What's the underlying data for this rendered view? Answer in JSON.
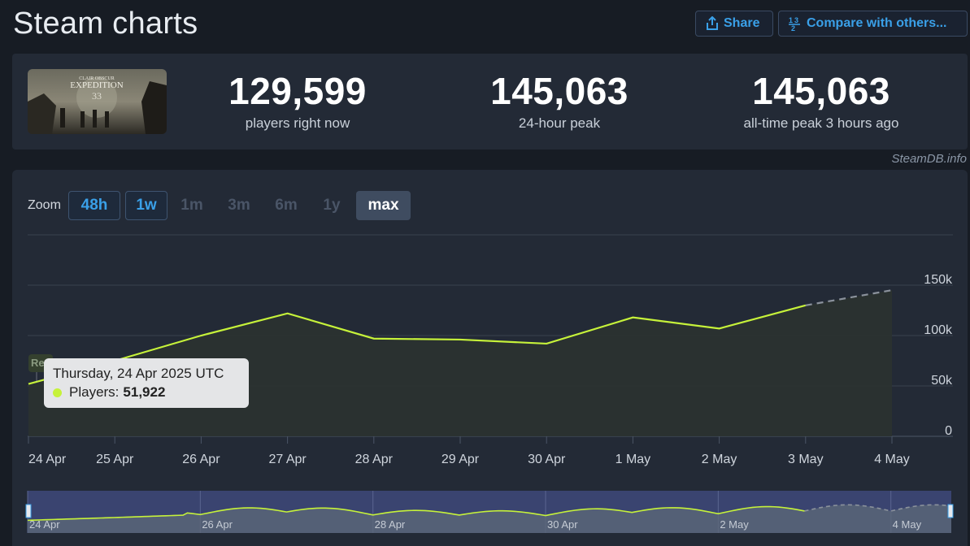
{
  "header": {
    "title": "Steam charts",
    "share_label": "Share",
    "compare_label": "Compare with others...",
    "share_icon": "share-icon",
    "compare_icon": "numbers-icon"
  },
  "game": {
    "cover_alt_text": "Clair Obscur Expedition 33",
    "cover_line1": "CLAIR OBSCUR",
    "cover_line2": "EXPEDITION",
    "cover_line3": "33"
  },
  "stats": [
    {
      "value": "129,599",
      "label": "players right now"
    },
    {
      "value": "145,063",
      "label": "24-hour peak"
    },
    {
      "value": "145,063",
      "label": "all-time peak 3 hours ago"
    }
  ],
  "credit": "SteamDB.info",
  "zoom": {
    "label": "Zoom",
    "buttons": [
      "48h",
      "1w",
      "1m",
      "3m",
      "6m",
      "1y",
      "max"
    ],
    "selected": "max"
  },
  "tooltip": {
    "date": "Thursday, 24 Apr 2025 UTC",
    "series_label": "Players:",
    "value": "51,922"
  },
  "reset_label": "Re",
  "colors": {
    "accent_blue": "#3aa0e8",
    "line": "#c6f23a",
    "background": "#171c24",
    "panel": "#232a36"
  },
  "chart_data": {
    "type": "line",
    "x": [
      "24 Apr",
      "25 Apr",
      "26 Apr",
      "27 Apr",
      "28 Apr",
      "29 Apr",
      "30 Apr",
      "1 May",
      "2 May",
      "3 May",
      "4 May"
    ],
    "series": [
      {
        "name": "Players",
        "values": [
          51922,
          75000,
          100000,
          122000,
          97000,
          96000,
          92000,
          118000,
          107000,
          130000,
          null
        ]
      },
      {
        "name": "",
        "values": [
          null,
          null,
          null,
          null,
          null,
          null,
          null,
          null,
          null,
          130000,
          145063
        ],
        "style": "dashed"
      }
    ],
    "y_ticks": [
      "0",
      "50k",
      "100k",
      "150k"
    ],
    "ylim": [
      0,
      150000
    ],
    "grid": true,
    "navigator_labels": [
      "24 Apr",
      "26 Apr",
      "28 Apr",
      "30 Apr",
      "2 May",
      "4 May"
    ]
  }
}
